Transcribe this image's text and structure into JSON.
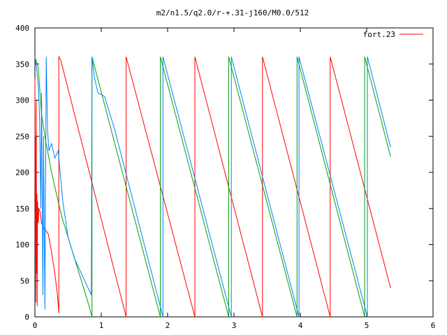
{
  "chart_data": {
    "type": "line",
    "title": "m2/n1.5/q2.0/r-+.31-j160/M0.0/512",
    "xlabel": "",
    "ylabel": "",
    "xlim": [
      0,
      6
    ],
    "ylim": [
      0,
      400
    ],
    "x_ticks": [
      "0",
      "1",
      "2",
      "3",
      "4",
      "5",
      "6"
    ],
    "y_ticks": [
      "0",
      "50",
      "100",
      "150",
      "200",
      "250",
      "300",
      "350",
      "400"
    ],
    "grid": false,
    "legend_position": "top-right",
    "series": [
      {
        "name": "fort.23",
        "color": "#ff0000",
        "points": [
          [
            0.0,
            330
          ],
          [
            0.005,
            80
          ],
          [
            0.01,
            250
          ],
          [
            0.015,
            20
          ],
          [
            0.02,
            300
          ],
          [
            0.025,
            60
          ],
          [
            0.03,
            170
          ],
          [
            0.035,
            15
          ],
          [
            0.04,
            160
          ],
          [
            0.05,
            130
          ],
          [
            0.06,
            150
          ],
          [
            0.08,
            145
          ],
          [
            0.1,
            130
          ],
          [
            0.12,
            125
          ],
          [
            0.16,
            120
          ],
          [
            0.2,
            115
          ],
          [
            0.25,
            90
          ],
          [
            0.3,
            60
          ],
          [
            0.34,
            30
          ],
          [
            0.36,
            5
          ],
          [
            0.36,
            360
          ],
          [
            0.39,
            355
          ],
          [
            1.375,
            0
          ],
          [
            1.375,
            360
          ],
          [
            2.41,
            0
          ],
          [
            2.41,
            360
          ],
          [
            3.43,
            0
          ],
          [
            3.43,
            360
          ],
          [
            4.45,
            0
          ],
          [
            4.45,
            360
          ],
          [
            5.36,
            40
          ]
        ]
      },
      {
        "name": "",
        "color": "#00a000",
        "points": [
          [
            0.0,
            360
          ],
          [
            0.05,
            345
          ],
          [
            0.1,
            280
          ],
          [
            0.15,
            250
          ],
          [
            0.2,
            225
          ],
          [
            0.25,
            200
          ],
          [
            0.3,
            180
          ],
          [
            0.35,
            160
          ],
          [
            0.4,
            140
          ],
          [
            0.5,
            110
          ],
          [
            0.6,
            80
          ],
          [
            0.7,
            50
          ],
          [
            0.8,
            20
          ],
          [
            0.86,
            0
          ],
          [
            0.86,
            360
          ],
          [
            1.89,
            0
          ],
          [
            1.89,
            360
          ],
          [
            2.92,
            0
          ],
          [
            2.92,
            360
          ],
          [
            3.95,
            0
          ],
          [
            3.95,
            360
          ],
          [
            4.97,
            0
          ],
          [
            4.97,
            360
          ],
          [
            5.36,
            222
          ]
        ]
      },
      {
        "name": "",
        "color": "#0080ff",
        "points": [
          [
            0.0,
            360
          ],
          [
            0.03,
            340
          ],
          [
            0.05,
            320
          ],
          [
            0.07,
            280
          ],
          [
            0.09,
            150
          ],
          [
            0.1,
            310
          ],
          [
            0.12,
            30
          ],
          [
            0.13,
            250
          ],
          [
            0.15,
            10
          ],
          [
            0.17,
            360
          ],
          [
            0.19,
            260
          ],
          [
            0.21,
            230
          ],
          [
            0.25,
            240
          ],
          [
            0.3,
            220
          ],
          [
            0.35,
            230
          ],
          [
            0.38,
            200
          ],
          [
            0.42,
            160
          ],
          [
            0.5,
            110
          ],
          [
            0.6,
            80
          ],
          [
            0.7,
            60
          ],
          [
            0.8,
            40
          ],
          [
            0.85,
            30
          ],
          [
            0.86,
            360
          ],
          [
            0.9,
            330
          ],
          [
            0.95,
            310
          ],
          [
            1.05,
            305
          ],
          [
            1.2,
            260
          ],
          [
            1.93,
            0
          ],
          [
            1.93,
            360
          ],
          [
            2.96,
            0
          ],
          [
            2.96,
            360
          ],
          [
            3.98,
            0
          ],
          [
            3.98,
            360
          ],
          [
            5.01,
            0
          ],
          [
            5.01,
            360
          ],
          [
            5.36,
            235
          ]
        ]
      }
    ]
  }
}
